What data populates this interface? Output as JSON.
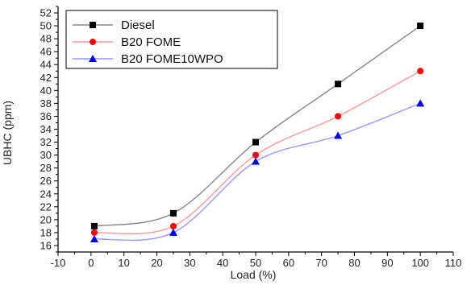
{
  "chart_data": {
    "type": "line",
    "title": "",
    "xlabel": "Load (%)",
    "ylabel": "UBHC (ppm)",
    "xlim": [
      -10,
      110
    ],
    "ylim": [
      15,
      53
    ],
    "xticks": [
      -10,
      0,
      10,
      20,
      30,
      40,
      50,
      60,
      70,
      80,
      90,
      100,
      110
    ],
    "yticks": [
      16,
      18,
      20,
      22,
      24,
      26,
      28,
      30,
      32,
      34,
      36,
      38,
      40,
      42,
      44,
      46,
      48,
      50,
      52
    ],
    "x": [
      1,
      25,
      50,
      75,
      100
    ],
    "series": [
      {
        "name": "Diesel",
        "values": [
          19,
          21,
          32,
          41,
          50
        ],
        "color": "#888888",
        "marker": "square",
        "marker_color": "#000000"
      },
      {
        "name": "B20 FOME",
        "values": [
          18,
          19,
          30,
          36,
          43
        ],
        "color": "#ff9999",
        "marker": "circle",
        "marker_color": "#ff0000"
      },
      {
        "name": "B20 FOME10WPO",
        "values": [
          17,
          18,
          29,
          33,
          38
        ],
        "color": "#9999ff",
        "marker": "triangle",
        "marker_color": "#0000ff"
      }
    ],
    "legend": "top-left",
    "grid": false
  }
}
